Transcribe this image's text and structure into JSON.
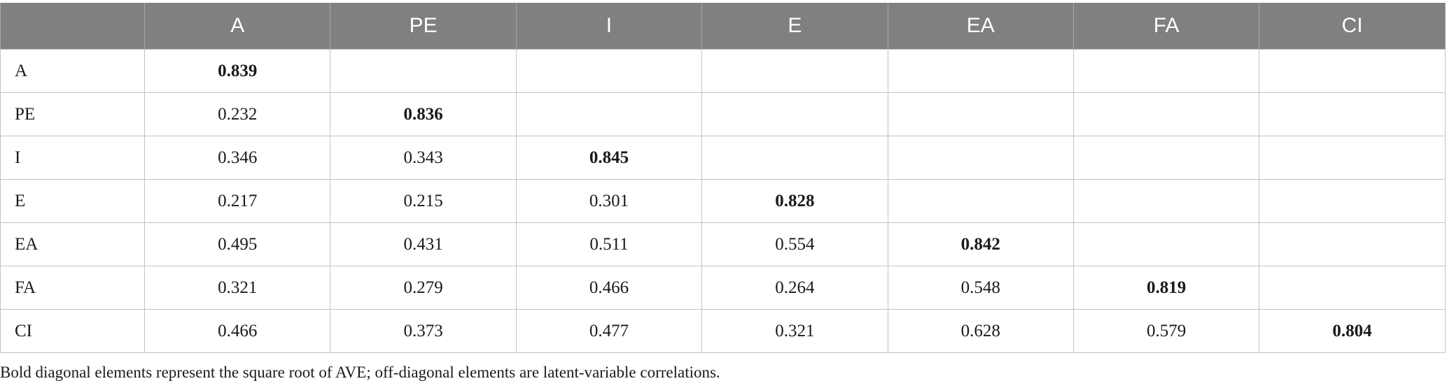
{
  "table": {
    "columns": [
      "",
      "A",
      "PE",
      "I",
      "E",
      "EA",
      "FA",
      "CI"
    ],
    "rows": [
      {
        "label": "A",
        "cells": [
          "0.839",
          "",
          "",
          "",
          "",
          "",
          ""
        ]
      },
      {
        "label": "PE",
        "cells": [
          "0.232",
          "0.836",
          "",
          "",
          "",
          "",
          ""
        ]
      },
      {
        "label": "I",
        "cells": [
          "0.346",
          "0.343",
          "0.845",
          "",
          "",
          "",
          ""
        ]
      },
      {
        "label": "E",
        "cells": [
          "0.217",
          "0.215",
          "0.301",
          "0.828",
          "",
          "",
          ""
        ]
      },
      {
        "label": "EA",
        "cells": [
          "0.495",
          "0.431",
          "0.511",
          "0.554",
          "0.842",
          "",
          ""
        ]
      },
      {
        "label": "FA",
        "cells": [
          "0.321",
          "0.279",
          "0.466",
          "0.264",
          "0.548",
          "0.819",
          ""
        ]
      },
      {
        "label": "CI",
        "cells": [
          "0.466",
          "0.373",
          "0.477",
          "0.321",
          "0.628",
          "0.579",
          "0.804"
        ]
      }
    ]
  },
  "footnote": "Bold diagonal elements represent the square root of AVE; off-diagonal elements are latent-variable correlations.",
  "colors": {
    "header_bg": "#808080",
    "header_text": "#ffffff",
    "border": "#c4c4c4"
  }
}
